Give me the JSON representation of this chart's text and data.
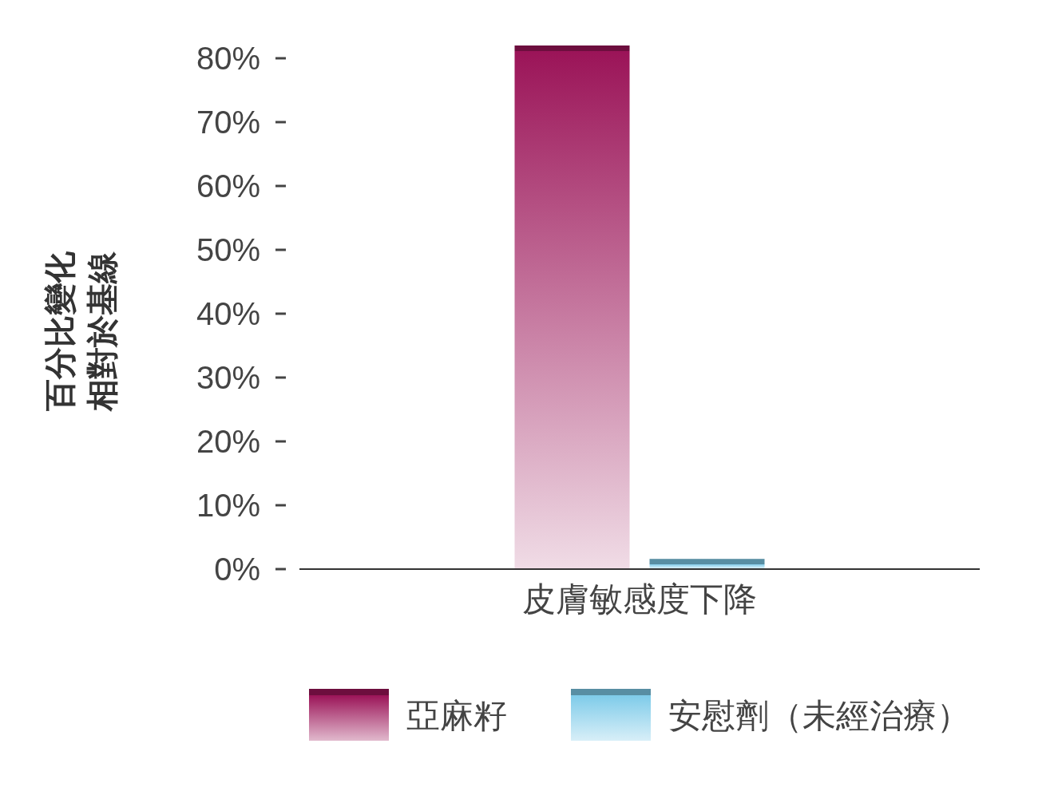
{
  "chart_data": {
    "type": "bar",
    "ylabel": "百分比變化相對於基線",
    "categories": [
      "皮膚敏感度下降"
    ],
    "series": [
      {
        "name": "亞麻籽",
        "color": "#9b1458",
        "values": [
          82
        ]
      },
      {
        "name": "安慰劑（未經治療）",
        "color": "#7ecbe9",
        "values": [
          1.6
        ]
      }
    ],
    "ylim": [
      0,
      82
    ],
    "yticks": [
      {
        "value": 0,
        "label": "0%"
      },
      {
        "value": 10,
        "label": "10%"
      },
      {
        "value": 20,
        "label": "20%"
      },
      {
        "value": 30,
        "label": "30%"
      },
      {
        "value": 40,
        "label": "40%"
      },
      {
        "value": 50,
        "label": "50%"
      },
      {
        "value": 60,
        "label": "60%"
      },
      {
        "value": 70,
        "label": "70%"
      },
      {
        "value": 80,
        "label": "80%"
      }
    ],
    "legend": "bottom"
  }
}
